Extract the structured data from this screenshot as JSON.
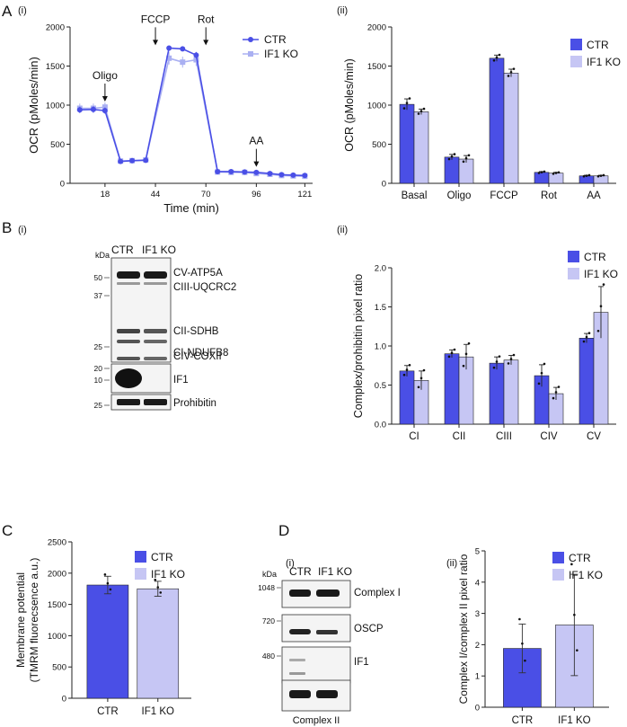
{
  "colors": {
    "ctr": "#4a4fe6",
    "ko": "#c6c6f4",
    "ko_line": "#aab0f2",
    "blot_bg": "#f4f4f4",
    "band": "#222222"
  },
  "panels": {
    "A": "A",
    "B": "B",
    "C": "C",
    "D": "D",
    "sub_i": "(i)",
    "sub_ii": "(ii)"
  },
  "legend": {
    "ctr": "CTR",
    "ko": "IF1 KO"
  },
  "blotB": {
    "kda_label": "kDa",
    "lanes": [
      "CTR",
      "IF1 KO"
    ],
    "mw": [
      "50",
      "37",
      "25",
      "20",
      "10",
      "25"
    ],
    "bands": [
      "CV-ATP5A",
      "CIII-UQCRC2",
      "CII-SDHB",
      "CIV-COXII",
      "CI-NDUFB8",
      "IF1",
      "Prohibitin"
    ]
  },
  "blotD": {
    "kda_label": "kDa",
    "lanes": [
      "CTR",
      "IF1 KO"
    ],
    "mw": [
      "1048",
      "720",
      "480"
    ],
    "bands": [
      "Complex I",
      "OSCP",
      "IF1"
    ],
    "caption": "Complex II"
  },
  "chart_data": [
    {
      "id": "A_i",
      "type": "line",
      "xlabel": "Time (min)",
      "ylabel": "OCR (pMoles/min)",
      "xlim": [
        0,
        125
      ],
      "ylim": [
        0,
        2000
      ],
      "xticks": [
        18,
        44,
        70,
        96,
        121
      ],
      "yticks": [
        0,
        500,
        1000,
        1500,
        2000
      ],
      "annotations": [
        {
          "label": "Oligo",
          "x": 18,
          "y": 1000
        },
        {
          "label": "FCCP",
          "x": 44,
          "y": 1720
        },
        {
          "label": "Rot",
          "x": 70,
          "y": 1720
        },
        {
          "label": "AA",
          "x": 96,
          "y": 165
        }
      ],
      "x": [
        5,
        12,
        18,
        26,
        32,
        39,
        51,
        58,
        65,
        76,
        83,
        90,
        96,
        103,
        109,
        115,
        121
      ],
      "series": [
        {
          "name": "CTR",
          "values": [
            940,
            945,
            930,
            280,
            290,
            295,
            1730,
            1720,
            1640,
            150,
            150,
            145,
            140,
            125,
            110,
            105,
            100
          ],
          "err": [
            40,
            40,
            40,
            20,
            20,
            20,
            30,
            30,
            40,
            15,
            15,
            15,
            15,
            15,
            15,
            15,
            15
          ]
        },
        {
          "name": "IF1 KO",
          "values": [
            960,
            960,
            975,
            285,
            290,
            300,
            1600,
            1550,
            1580,
            145,
            140,
            140,
            125,
            115,
            100,
            95,
            90
          ],
          "err": [
            60,
            60,
            60,
            20,
            20,
            20,
            80,
            70,
            80,
            15,
            15,
            15,
            15,
            15,
            15,
            15,
            15
          ]
        }
      ]
    },
    {
      "id": "A_ii",
      "type": "bar",
      "ylabel": "OCR (pMoles/min)",
      "ylim": [
        0,
        2000
      ],
      "yticks": [
        0,
        500,
        1000,
        1500,
        2000
      ],
      "categories": [
        "Basal",
        "Oligo",
        "FCCP",
        "Rot",
        "AA"
      ],
      "series": [
        {
          "name": "CTR",
          "values": [
            1010,
            335,
            1600,
            140,
            95
          ],
          "err": [
            70,
            35,
            40,
            10,
            8
          ]
        },
        {
          "name": "IF1 KO",
          "values": [
            915,
            310,
            1410,
            130,
            95
          ],
          "err": [
            35,
            45,
            50,
            10,
            8
          ]
        }
      ]
    },
    {
      "id": "B_ii",
      "type": "bar",
      "ylabel": "Complex/prohibitin pixel ratio",
      "ylim": [
        0,
        2.0
      ],
      "yticks": [
        0,
        0.5,
        1.0,
        1.5,
        2.0
      ],
      "categories": [
        "CI",
        "CII",
        "CIII",
        "CIV",
        "CV"
      ],
      "series": [
        {
          "name": "CTR",
          "values": [
            0.68,
            0.9,
            0.78,
            0.62,
            1.1
          ],
          "err": [
            0.07,
            0.05,
            0.08,
            0.14,
            0.06
          ]
        },
        {
          "name": "IF1 KO",
          "values": [
            0.56,
            0.86,
            0.82,
            0.39,
            1.43
          ],
          "err": [
            0.12,
            0.16,
            0.06,
            0.08,
            0.33
          ]
        }
      ]
    },
    {
      "id": "C",
      "type": "bar",
      "ylabel": "Membrane potential (TMRM fluorecsence a.u.)",
      "ylim": [
        0,
        2500
      ],
      "yticks": [
        0,
        500,
        1000,
        1500,
        2000,
        2500
      ],
      "categories": [
        "CTR",
        "IF1 KO"
      ],
      "values": [
        1810,
        1750
      ],
      "err": [
        140,
        120
      ]
    },
    {
      "id": "D_ii",
      "type": "bar",
      "ylabel": "Complex I/complex II pixel ratio",
      "ylim": [
        0,
        5
      ],
      "yticks": [
        0,
        1,
        2,
        3,
        4,
        5
      ],
      "categories": [
        "CTR",
        "IF1 KO"
      ],
      "values": [
        1.88,
        2.63
      ],
      "err": [
        0.78,
        1.62
      ]
    }
  ]
}
